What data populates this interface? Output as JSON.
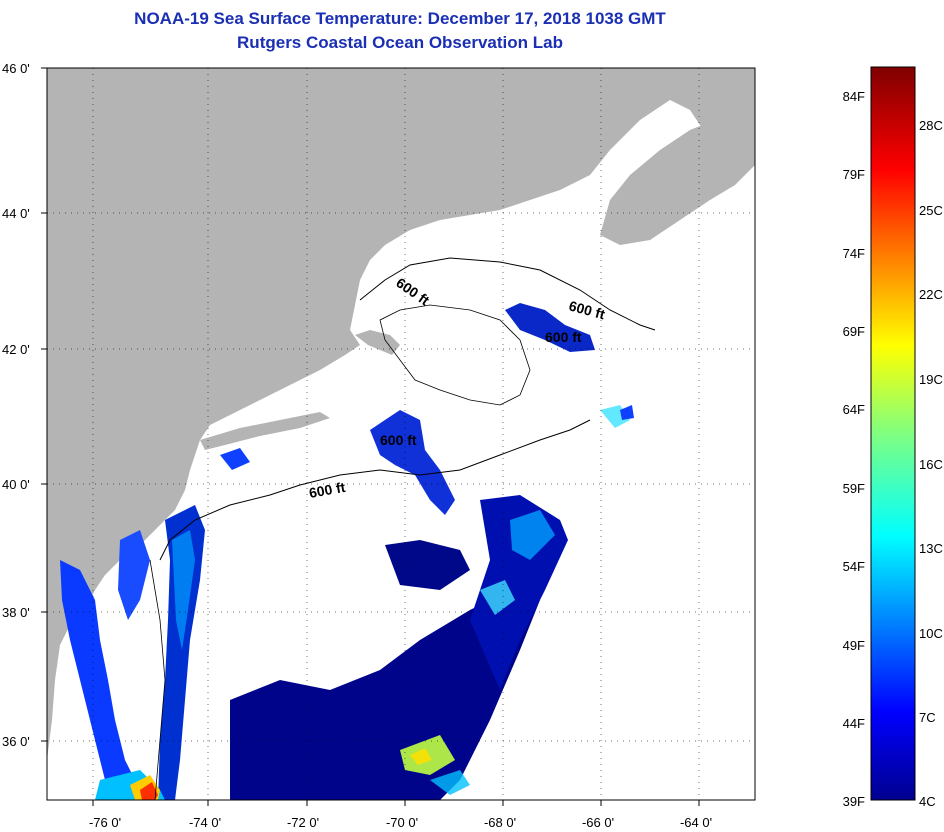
{
  "title": "NOAA-19 Sea Surface Temperature:  December 17, 2018 1038 GMT",
  "subtitle": "Rutgers Coastal Ocean Observation Lab",
  "map": {
    "lon_labels": [
      "-76 0'",
      "-74 0'",
      "-72 0'",
      "-70 0'",
      "-68 0'",
      "-66 0'",
      "-64 0'"
    ],
    "lat_labels": [
      "46 0'",
      "44 0'",
      "42 0'",
      "40 0'",
      "38 0'",
      "36 0'"
    ],
    "isobath_labels": [
      "600 ft",
      "600 ft",
      "600 ft",
      "600 ft",
      "600 ft"
    ],
    "land_color": "#b4b4b4",
    "cloud_color": "#ffffff",
    "colors": {
      "cold": "#00008f",
      "cool": "#0040ff",
      "mid": "#00c0ff",
      "warm": "#ffff00",
      "hot": "#ff2000"
    }
  },
  "colorbar": {
    "fahrenheit": [
      "84F",
      "79F",
      "74F",
      "69F",
      "64F",
      "59F",
      "54F",
      "49F",
      "44F",
      "39F"
    ],
    "celsius": [
      "28C",
      "25C",
      "22C",
      "19C",
      "16C",
      "13C",
      "10C",
      "7C",
      "4C"
    ]
  }
}
